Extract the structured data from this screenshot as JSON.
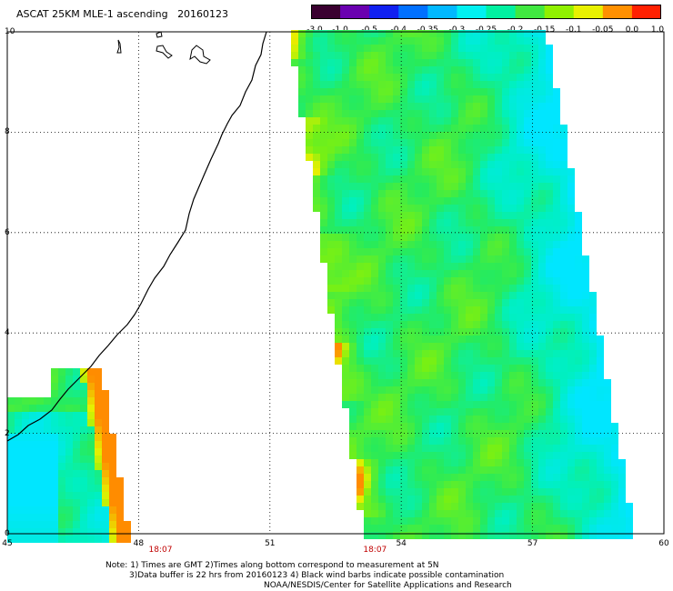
{
  "header": {
    "title": "ASCAT 25KM MLE-1 ascending",
    "date": "20160123"
  },
  "colorbar": {
    "labels": [
      "-3.0",
      "-1.0",
      "-0.5",
      "-0.4",
      "-0.35",
      "-0.3",
      "-0.25",
      "-0.2",
      "-0.15",
      "-0.1",
      "-0.05",
      "0.0",
      "1.0"
    ],
    "colors": [
      "#3a0030",
      "#6a00b0",
      "#1020f0",
      "#0070ff",
      "#00b8ff",
      "#00f0f0",
      "#00f0a0",
      "#40e840",
      "#90f000",
      "#e8f000",
      "#ff9000",
      "#ff2000"
    ]
  },
  "map": {
    "lon_range": [
      45,
      60
    ],
    "lat_range": [
      0,
      10
    ],
    "x_ticks": [
      "45",
      "48",
      "51",
      "54",
      "57",
      "60"
    ],
    "y_ticks": [
      "0",
      "2",
      "4",
      "6",
      "8",
      "10"
    ],
    "pass_times": [
      {
        "label": "18:07",
        "lon": 48.5
      },
      {
        "label": "18:07",
        "lon": 53.4
      }
    ],
    "land_color": "#ffffff",
    "coastline_color": "#000000",
    "grid": "dotted"
  },
  "notes": {
    "line1": "Note: 1) Times are GMT 2)Times along bottom correspond to measurement at 5N",
    "line2": "3)Data buffer is 22 hrs from 20160123 4) Black wind barbs indicate possible contamination",
    "line3": "NOAA/NESDIS/Center for Satellite Applications and Research"
  }
}
